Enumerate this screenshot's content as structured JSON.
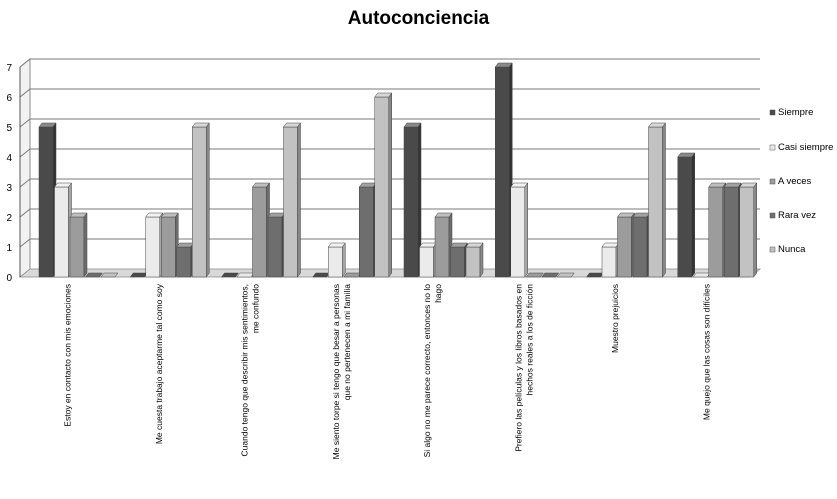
{
  "chart_data": {
    "type": "bar",
    "title": "Autoconciencia",
    "categories": [
      [
        "Estoy en contacto con mis emociones"
      ],
      [
        "Me cuesta trabajo aceptarme tal como soy"
      ],
      [
        "Cuando tengo que describir mis sentimientos,",
        "me confundo"
      ],
      [
        "Me siento torpe si tengo que besar a personas",
        "que no pertenecen a mi familia"
      ],
      [
        "Si algo no me parece correcto, entonces no lo",
        "hago"
      ],
      [
        "Prefiero las películas y los libros basados en",
        "hechos reales a los de ficción"
      ],
      [
        "Muestro prejuicios"
      ],
      [
        "Me quejo que las cosas son difíciles"
      ]
    ],
    "series": [
      {
        "name": "Siempre",
        "color": "#4a4a4a",
        "values": [
          5,
          0,
          0,
          0,
          5,
          7,
          0,
          4
        ]
      },
      {
        "name": "Casi siempre",
        "color": "#ebebeb",
        "values": [
          3,
          2,
          0,
          1,
          1,
          3,
          1,
          0
        ]
      },
      {
        "name": "A veces",
        "color": "#9c9c9c",
        "values": [
          2,
          2,
          3,
          0,
          2,
          0,
          2,
          3
        ]
      },
      {
        "name": "Rara vez",
        "color": "#6e6e6e",
        "values": [
          0,
          1,
          2,
          3,
          1,
          0,
          2,
          3
        ]
      },
      {
        "name": "Nunca",
        "color": "#c2c2c2",
        "values": [
          0,
          5,
          5,
          6,
          1,
          0,
          5,
          3
        ]
      }
    ],
    "ylim": [
      0,
      7
    ],
    "yticks": [
      0,
      1,
      2,
      3,
      4,
      5,
      6,
      7
    ],
    "grid": true,
    "legend_position": "right"
  }
}
